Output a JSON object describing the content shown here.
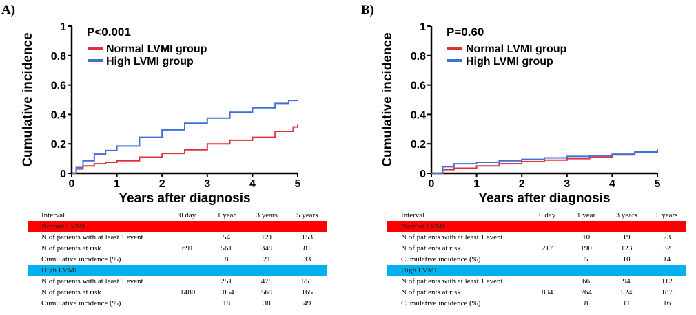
{
  "chart_data": [
    {
      "type": "line",
      "panel_label": "A)",
      "pvalue": "P<0.001",
      "xlabel": "Years after diagnosis",
      "ylabel": "Cumulative incidence",
      "xlim": [
        0,
        5
      ],
      "ylim": [
        0,
        1
      ],
      "xticks": [
        "0",
        "1",
        "2",
        "3",
        "4",
        "5"
      ],
      "yticks": [
        "0",
        "0.2",
        "0.4",
        "0.6",
        "0.8",
        "1"
      ],
      "legend_position": "top-left",
      "series": [
        {
          "name": "Normal LVMI group",
          "color": "#e0303c",
          "x": [
            0,
            0.1,
            0.25,
            0.5,
            0.75,
            1,
            1.5,
            2,
            2.5,
            3,
            3.5,
            4,
            4.5,
            4.9,
            5
          ],
          "y": [
            0,
            0.03,
            0.05,
            0.065,
            0.075,
            0.085,
            0.11,
            0.135,
            0.16,
            0.2,
            0.225,
            0.245,
            0.285,
            0.315,
            0.33
          ]
        },
        {
          "name": "High LVMI group",
          "color": "#3f6fd8",
          "x": [
            0,
            0.1,
            0.25,
            0.5,
            0.75,
            1,
            1.5,
            2,
            2.5,
            3,
            3.5,
            4,
            4.5,
            4.8,
            5
          ],
          "y": [
            0,
            0.04,
            0.085,
            0.13,
            0.155,
            0.185,
            0.245,
            0.295,
            0.34,
            0.375,
            0.415,
            0.445,
            0.475,
            0.495,
            0.495
          ]
        }
      ]
    },
    {
      "type": "line",
      "panel_label": "B)",
      "pvalue": "P=0.60",
      "xlabel": "Years after diagnosis",
      "ylabel": "Cumulative incidence",
      "xlim": [
        0,
        5
      ],
      "ylim": [
        0,
        1
      ],
      "xticks": [
        "0",
        "1",
        "2",
        "3",
        "4",
        "5"
      ],
      "yticks": [
        "0",
        "0.2",
        "0.4",
        "0.6",
        "0.8",
        "1"
      ],
      "legend_position": "top-left",
      "series": [
        {
          "name": "Normal LVMI group",
          "color": "#e0303c",
          "x": [
            0,
            0.25,
            0.5,
            1,
            1.5,
            2,
            2.5,
            3,
            3.5,
            4,
            4.5,
            5
          ],
          "y": [
            0,
            0.025,
            0.035,
            0.05,
            0.065,
            0.08,
            0.09,
            0.1,
            0.11,
            0.125,
            0.14,
            0.148
          ]
        },
        {
          "name": "High LVMI group",
          "color": "#3f6fd8",
          "x": [
            0,
            0.25,
            0.5,
            1,
            1.5,
            2,
            2.5,
            3,
            3.5,
            4,
            4.5,
            5
          ],
          "y": [
            0,
            0.045,
            0.065,
            0.075,
            0.085,
            0.095,
            0.105,
            0.115,
            0.12,
            0.13,
            0.145,
            0.165
          ]
        }
      ]
    }
  ],
  "tables": [
    {
      "header": [
        "Interval",
        "0 day",
        "1 year",
        "3 years",
        "5 years"
      ],
      "groups": [
        {
          "name": "Normal LVMI",
          "band_color": "#ff0000",
          "rows": [
            {
              "label": "N of patients with at least 1 event",
              "values": [
                "",
                "54",
                "121",
                "153"
              ]
            },
            {
              "label": "N of patients at risk",
              "values": [
                "691",
                "561",
                "349",
                "81"
              ]
            },
            {
              "label": "Cumulative incidence (%)",
              "values": [
                "",
                "8",
                "21",
                "33"
              ]
            }
          ]
        },
        {
          "name": "High LVMI",
          "band_color": "#00b0f0",
          "rows": [
            {
              "label": "N of patients with at least 1 event",
              "values": [
                "",
                "251",
                "475",
                "551"
              ]
            },
            {
              "label": "N of patients at risk",
              "values": [
                "1480",
                "1054",
                "569",
                "165"
              ]
            },
            {
              "label": "Cumulative incidence (%)",
              "values": [
                "",
                "18",
                "38",
                "49"
              ]
            }
          ]
        }
      ]
    },
    {
      "header": [
        "Interval",
        "0 day",
        "1 year",
        "3 years",
        "5 years"
      ],
      "groups": [
        {
          "name": "Normal LVMI",
          "band_color": "#ff0000",
          "rows": [
            {
              "label": "N of patients with at least 1 event",
              "values": [
                "",
                "10",
                "19",
                "23"
              ]
            },
            {
              "label": "N of patients at risk",
              "values": [
                "217",
                "190",
                "123",
                "32"
              ]
            },
            {
              "label": "Cumulative incidence (%)",
              "values": [
                "",
                "5",
                "10",
                "14"
              ]
            }
          ]
        },
        {
          "name": "High LVMI",
          "band_color": "#00b0f0",
          "rows": [
            {
              "label": "N of patients with at least 1 event",
              "values": [
                "",
                "66",
                "94",
                "112"
              ]
            },
            {
              "label": "N of patients at risk",
              "values": [
                "894",
                "764",
                "524",
                "187"
              ]
            },
            {
              "label": "Cumulative incidence (%)",
              "values": [
                "",
                "8",
                "11",
                "16"
              ]
            }
          ]
        }
      ]
    }
  ]
}
